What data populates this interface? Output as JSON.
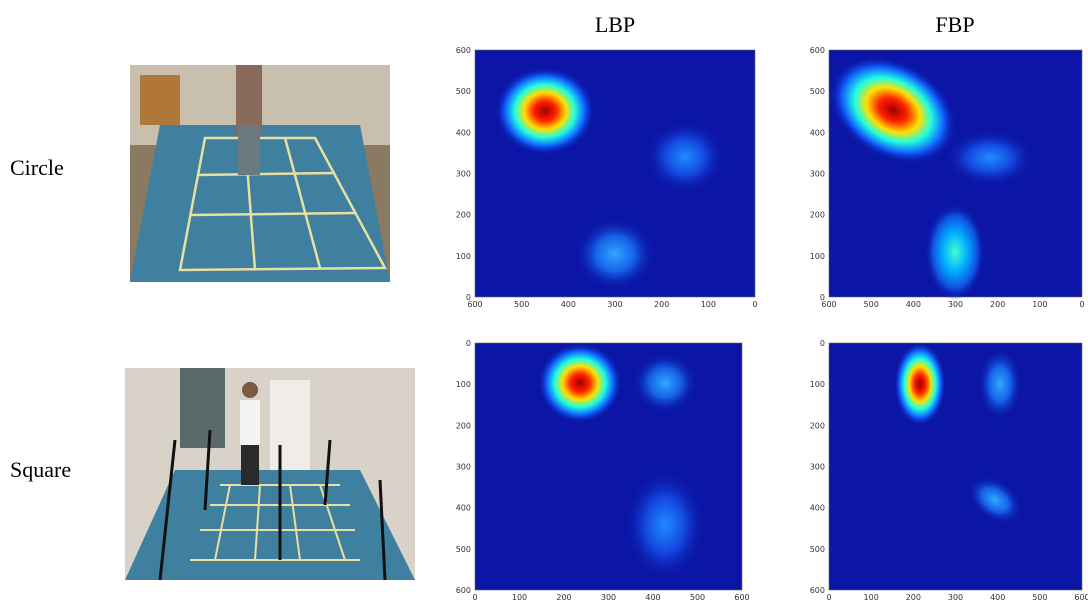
{
  "columns": [
    "LBP",
    "FBP"
  ],
  "rows": [
    {
      "label": "Circle",
      "panels": [
        {
          "xticks": [
            600,
            500,
            400,
            300,
            200,
            100,
            0
          ],
          "yticks": [
            600,
            500,
            400,
            300,
            200,
            100,
            0
          ]
        },
        {
          "xticks": [
            600,
            500,
            400,
            300,
            200,
            100,
            0
          ],
          "yticks": [
            600,
            500,
            400,
            300,
            200,
            100,
            0
          ]
        }
      ]
    },
    {
      "label": "Square",
      "panels": [
        {
          "xticks": [
            0,
            100,
            200,
            300,
            400,
            500,
            600
          ],
          "yticks": [
            0,
            100,
            200,
            300,
            400,
            500,
            600
          ]
        },
        {
          "xticks": [
            0,
            100,
            200,
            300,
            400,
            500,
            600
          ],
          "yticks": [
            0,
            100,
            200,
            300,
            400,
            500,
            600
          ]
        }
      ]
    }
  ]
}
